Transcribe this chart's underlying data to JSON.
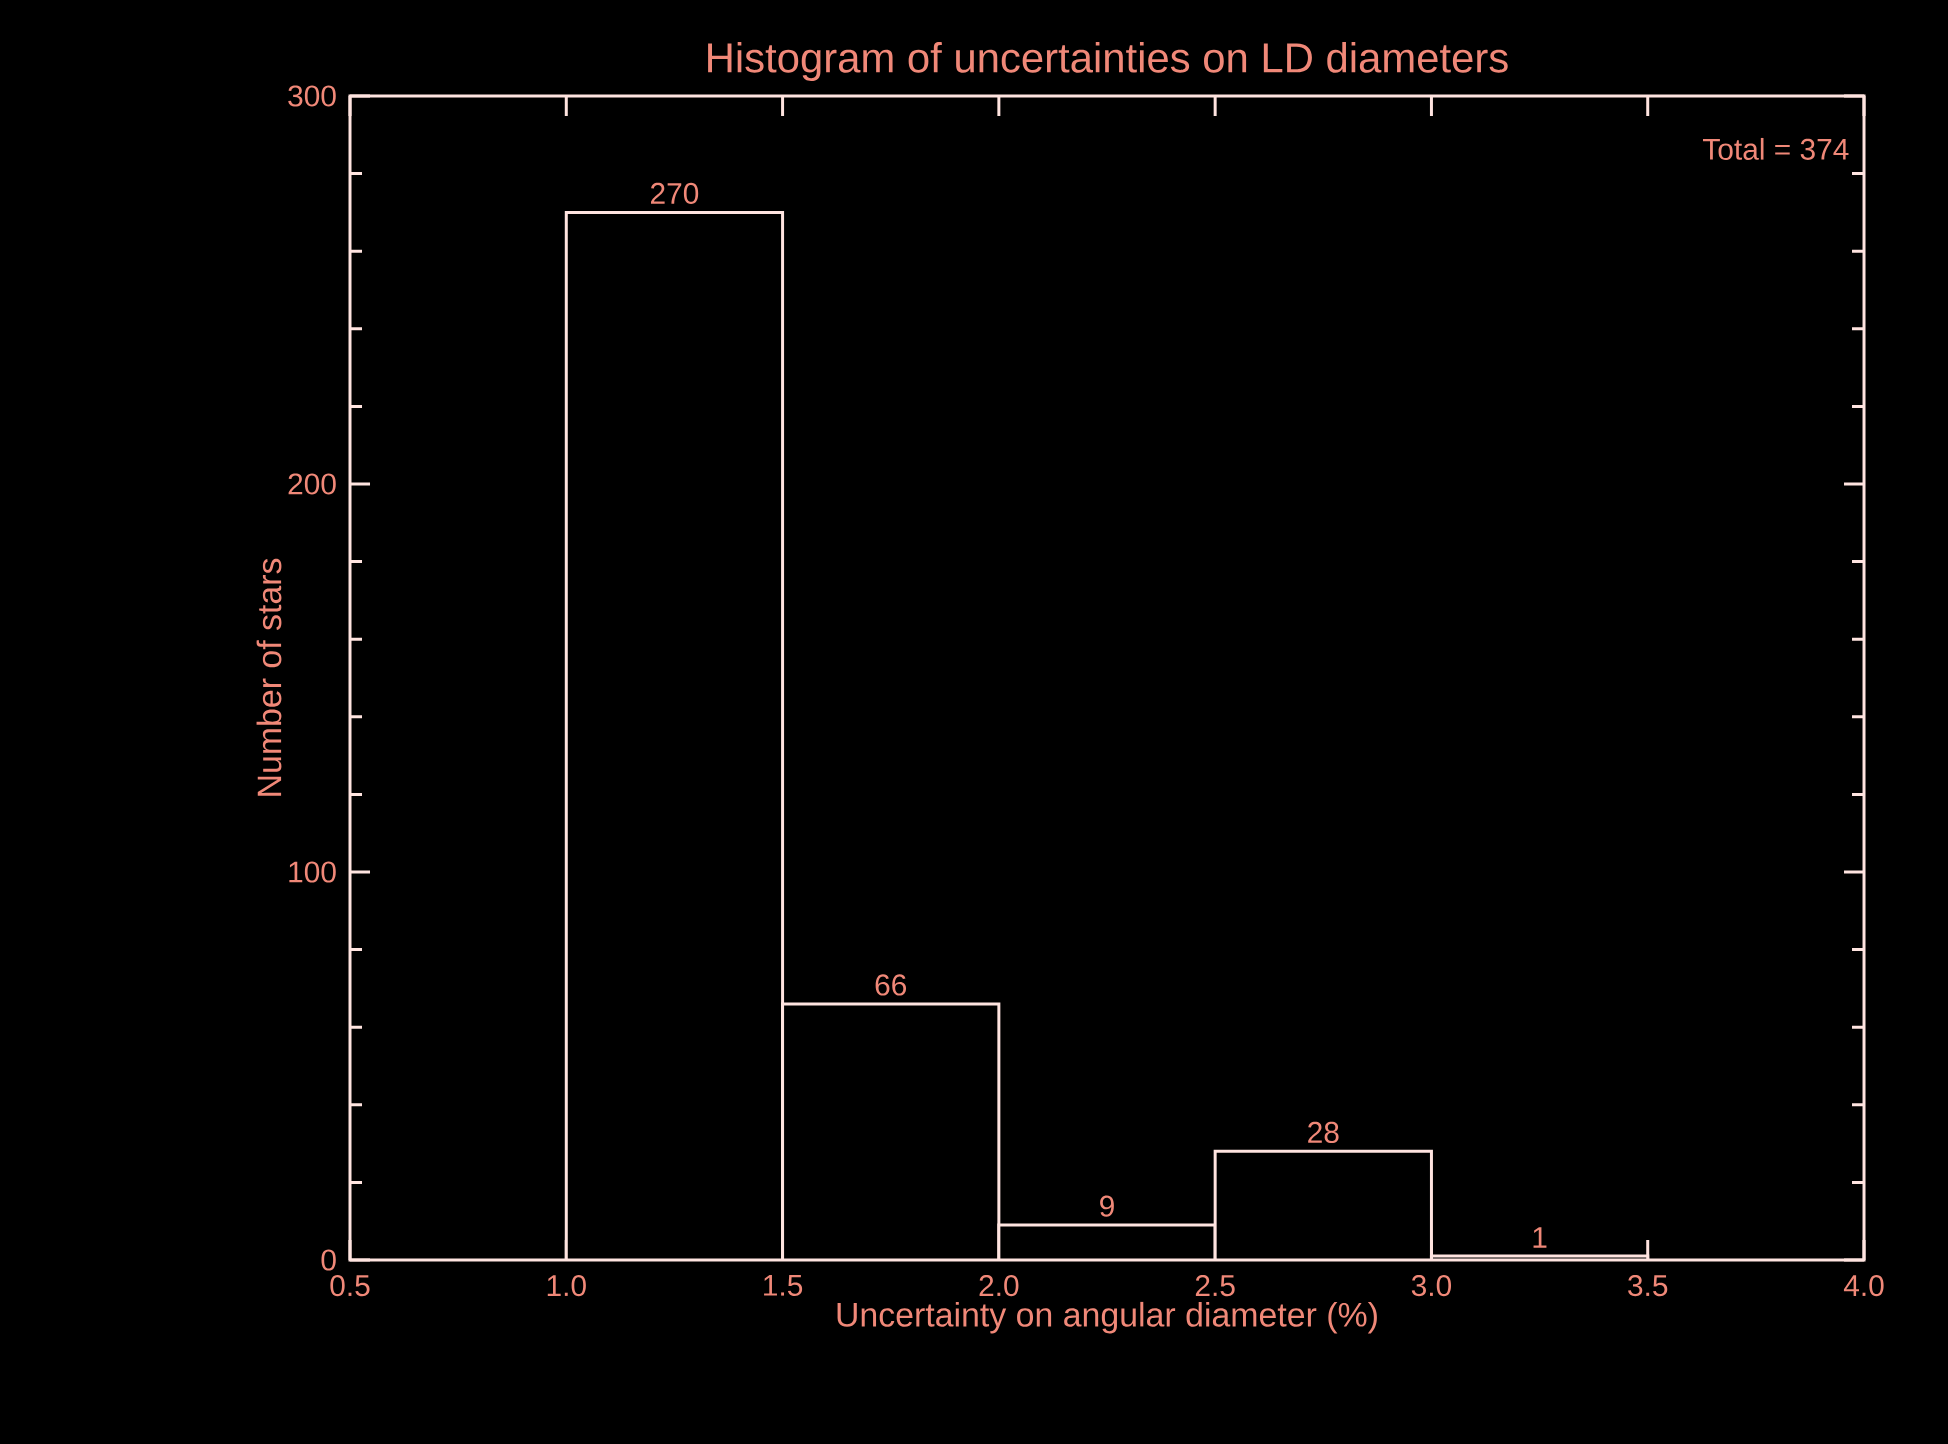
{
  "chart_data": {
    "type": "histogram",
    "title": "Histogram of uncertainties on LD diameters",
    "xlabel": "Uncertainty on angular diameter (%)",
    "ylabel": "Number of stars",
    "bins": [
      1.0,
      1.5,
      2.0,
      2.5,
      3.0,
      3.5
    ],
    "values": [
      270,
      66,
      9,
      28,
      1
    ],
    "color": "#ffe4e0",
    "data_labels": true,
    "annotations": [
      "Total = 374"
    ],
    "xlim": [
      0.5,
      4.0
    ],
    "xticks": [
      {
        "value": 0.5,
        "label": "0.5"
      },
      {
        "value": 1.0,
        "label": "1.0"
      },
      {
        "value": 1.5,
        "label": "1.5"
      },
      {
        "value": 2.0,
        "label": "2.0"
      },
      {
        "value": 2.5,
        "label": "2.5"
      },
      {
        "value": 3.0,
        "label": "3.0"
      },
      {
        "value": 3.5,
        "label": "3.5"
      },
      {
        "value": 4.0,
        "label": "4.0"
      }
    ],
    "ylim": [
      0,
      300
    ],
    "yticks": [
      0,
      100,
      200,
      300
    ],
    "grid": false
  }
}
